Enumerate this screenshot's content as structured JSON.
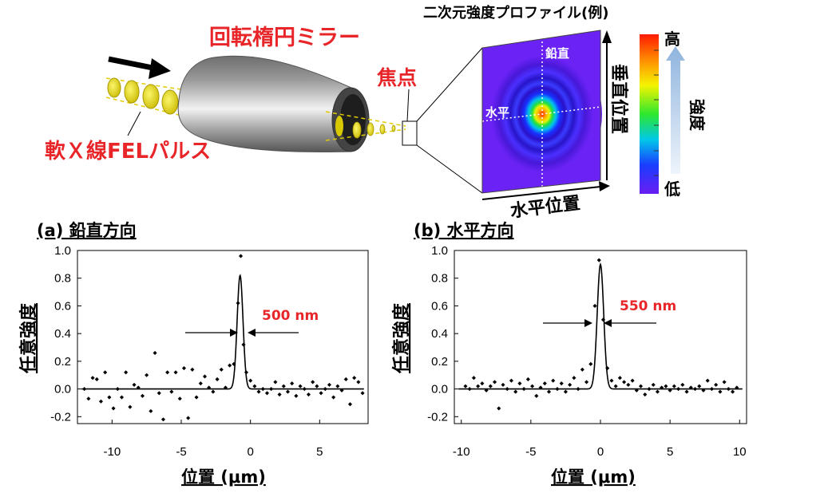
{
  "diagram": {
    "profile_title": "二次元強度プロファイル(例)",
    "mirror_label": "回転楕円ミラー",
    "pulse_label": "軟Ｘ線FELパルス",
    "focus_label": "焦点",
    "vertical_inner": "鉛直",
    "horizontal_inner": "水平",
    "vertical_position": "垂直位置",
    "horizontal_position": "水平位置",
    "scale_high": "高",
    "scale_low": "低",
    "scale_label": "強度"
  },
  "panels": [
    {
      "title": "(a) 鉛直方向",
      "ylabel": "任意強度",
      "xlabel": "位置 (μm)",
      "fwhm_label": "500 nm"
    },
    {
      "title": "(b) 水平方向",
      "ylabel": "任意強度",
      "xlabel": "位置 (μm)",
      "fwhm_label": "550 nm"
    }
  ],
  "chart_data": [
    {
      "type": "scatter",
      "title": "(a) 鉛直方向",
      "xlabel": "位置 (μm)",
      "ylabel": "任意強度",
      "xlim": [
        -12.5,
        8.5
      ],
      "ylim": [
        -0.25,
        1.0
      ],
      "xticks": [
        "-10",
        "-5",
        "0",
        "5"
      ],
      "yticks": [
        "-0.2",
        "0.0",
        "0.2",
        "0.4",
        "0.6",
        "0.8",
        "1.0"
      ],
      "annotation": "500 nm",
      "fit_peak": {
        "center": -0.75,
        "height": 0.82,
        "fwhm": 0.5
      },
      "points": [
        [
          -12.0,
          0.0
        ],
        [
          -11.7,
          -0.07
        ],
        [
          -11.4,
          0.08
        ],
        [
          -11.1,
          0.07
        ],
        [
          -10.8,
          -0.09
        ],
        [
          -10.5,
          0.12
        ],
        [
          -10.2,
          -0.06
        ],
        [
          -9.9,
          -0.14
        ],
        [
          -9.6,
          0.0
        ],
        [
          -9.3,
          -0.06
        ],
        [
          -9.0,
          0.12
        ],
        [
          -8.7,
          -0.13
        ],
        [
          -8.4,
          0.03
        ],
        [
          -8.1,
          0.01
        ],
        [
          -7.8,
          -0.05
        ],
        [
          -7.5,
          0.1
        ],
        [
          -7.2,
          -0.16
        ],
        [
          -6.9,
          0.26
        ],
        [
          -6.6,
          -0.03
        ],
        [
          -6.3,
          -0.22
        ],
        [
          -6.0,
          0.12
        ],
        [
          -5.7,
          -0.02
        ],
        [
          -5.4,
          0.12
        ],
        [
          -5.1,
          -0.07
        ],
        [
          -4.8,
          0.15
        ],
        [
          -4.5,
          -0.21
        ],
        [
          -4.2,
          0.14
        ],
        [
          -3.9,
          -0.06
        ],
        [
          -3.6,
          0.04
        ],
        [
          -3.3,
          0.09
        ],
        [
          -3.0,
          0.01
        ],
        [
          -2.7,
          -0.02
        ],
        [
          -2.4,
          0.07
        ],
        [
          -2.1,
          0.14
        ],
        [
          -1.8,
          0.01
        ],
        [
          -1.5,
          0.17
        ],
        [
          -1.2,
          0.18
        ],
        [
          -0.9,
          0.62
        ],
        [
          -0.7,
          0.96
        ],
        [
          -0.5,
          0.32
        ],
        [
          -0.3,
          0.12
        ],
        [
          0.0,
          0.06
        ],
        [
          0.3,
          0.02
        ],
        [
          0.6,
          -0.02
        ],
        [
          0.9,
          0.0
        ],
        [
          1.2,
          -0.03
        ],
        [
          1.5,
          0.0
        ],
        [
          1.8,
          0.05
        ],
        [
          2.1,
          -0.04
        ],
        [
          2.4,
          0.02
        ],
        [
          2.7,
          -0.02
        ],
        [
          3.0,
          0.04
        ],
        [
          3.3,
          -0.05
        ],
        [
          3.6,
          0.02
        ],
        [
          3.9,
          0.0
        ],
        [
          4.2,
          -0.04
        ],
        [
          4.5,
          0.05
        ],
        [
          4.8,
          0.02
        ],
        [
          5.1,
          -0.03
        ],
        [
          5.4,
          0.0
        ],
        [
          5.7,
          0.03
        ],
        [
          6.0,
          -0.06
        ],
        [
          6.3,
          0.02
        ],
        [
          6.6,
          -0.01
        ],
        [
          6.9,
          0.07
        ],
        [
          7.2,
          -0.11
        ],
        [
          7.5,
          0.08
        ],
        [
          7.8,
          0.05
        ],
        [
          8.1,
          -0.03
        ]
      ]
    },
    {
      "type": "scatter",
      "title": "(b) 水平方向",
      "xlabel": "位置 (μm)",
      "ylabel": "任意強度",
      "xlim": [
        -10.5,
        10.5
      ],
      "ylim": [
        -0.25,
        1.0
      ],
      "xticks": [
        "-10",
        "-5",
        "0",
        "5",
        "10"
      ],
      "yticks": [
        "-0.2",
        "0.0",
        "0.2",
        "0.4",
        "0.6",
        "0.8",
        "1.0"
      ],
      "annotation": "550 nm",
      "fit_peak": {
        "center": 0.0,
        "height": 0.9,
        "fwhm": 0.55
      },
      "points": [
        [
          -9.7,
          0.02
        ],
        [
          -9.4,
          0.0
        ],
        [
          -9.1,
          0.08
        ],
        [
          -8.8,
          0.02
        ],
        [
          -8.5,
          0.04
        ],
        [
          -8.2,
          -0.01
        ],
        [
          -7.9,
          0.02
        ],
        [
          -7.6,
          0.05
        ],
        [
          -7.3,
          -0.14
        ],
        [
          -7.0,
          0.03
        ],
        [
          -6.7,
          0.0
        ],
        [
          -6.4,
          0.06
        ],
        [
          -6.1,
          -0.02
        ],
        [
          -5.8,
          0.04
        ],
        [
          -5.5,
          0.0
        ],
        [
          -5.2,
          0.07
        ],
        [
          -4.9,
          0.02
        ],
        [
          -4.6,
          -0.05
        ],
        [
          -4.3,
          0.01
        ],
        [
          -4.0,
          0.04
        ],
        [
          -3.7,
          -0.02
        ],
        [
          -3.4,
          0.06
        ],
        [
          -3.1,
          0.0
        ],
        [
          -2.8,
          0.04
        ],
        [
          -2.5,
          -0.02
        ],
        [
          -2.2,
          0.03
        ],
        [
          -1.9,
          0.08
        ],
        [
          -1.6,
          0.0
        ],
        [
          -1.3,
          0.14
        ],
        [
          -1.0,
          0.05
        ],
        [
          -0.7,
          0.18
        ],
        [
          -0.4,
          0.6
        ],
        [
          -0.1,
          0.93
        ],
        [
          0.2,
          0.5
        ],
        [
          0.5,
          0.15
        ],
        [
          0.8,
          0.06
        ],
        [
          1.1,
          0.02
        ],
        [
          1.4,
          0.08
        ],
        [
          1.7,
          0.05
        ],
        [
          2.0,
          0.03
        ],
        [
          2.3,
          0.06
        ],
        [
          2.6,
          -0.01
        ],
        [
          2.9,
          0.02
        ],
        [
          3.2,
          -0.04
        ],
        [
          3.5,
          0.0
        ],
        [
          3.8,
          0.03
        ],
        [
          4.1,
          -0.02
        ],
        [
          4.4,
          0.01
        ],
        [
          4.7,
          0.02
        ],
        [
          5.0,
          -0.01
        ],
        [
          5.3,
          0.02
        ],
        [
          5.6,
          0.0
        ],
        [
          5.9,
          0.03
        ],
        [
          6.2,
          -0.02
        ],
        [
          6.5,
          0.01
        ],
        [
          6.8,
          0.0
        ],
        [
          7.1,
          0.02
        ],
        [
          7.4,
          -0.01
        ],
        [
          7.7,
          0.06
        ],
        [
          8.0,
          0.0
        ],
        [
          8.3,
          0.03
        ],
        [
          8.6,
          -0.02
        ],
        [
          8.9,
          0.05
        ],
        [
          9.2,
          0.0
        ],
        [
          9.5,
          -0.02
        ],
        [
          9.8,
          0.01
        ]
      ]
    }
  ],
  "colors": {
    "accent_red": "#e8262a",
    "pulse_yellow": "#e8e020",
    "mirror_gray": "#8a8a8a",
    "profile_background": "#6a22f5",
    "scale_arrow": "#b9d2ec"
  }
}
